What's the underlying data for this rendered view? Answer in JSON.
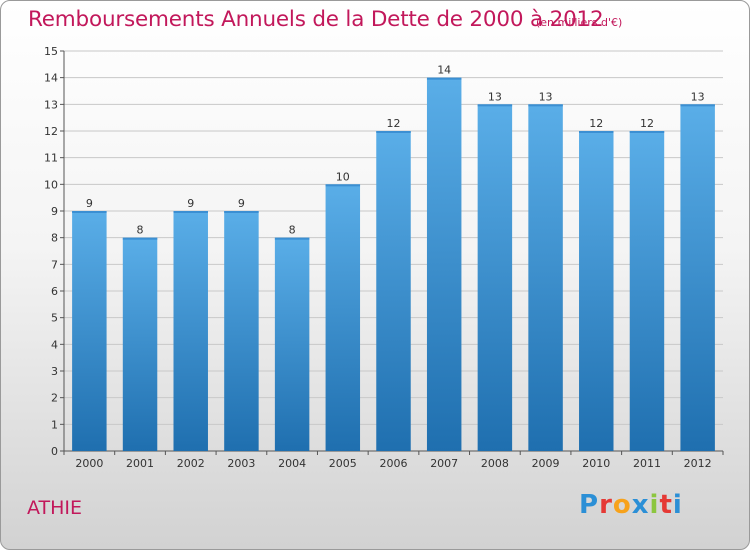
{
  "header": {
    "title": "Remboursements Annuels de la Dette de 2000 à 2012",
    "subtitle": "(en milliers d'€)"
  },
  "footer": {
    "place": "ATHIE",
    "brand": [
      "P",
      "r",
      "o",
      "x",
      "i",
      "t",
      "i"
    ],
    "brand_colors": [
      "#2b8fd6",
      "#e53935",
      "#f7a21b",
      "#2b8fd6",
      "#8cc63f",
      "#e53935",
      "#2b8fd6"
    ]
  },
  "colors": {
    "bar_light": "#5aaee8",
    "bar_dark": "#1f6faf",
    "grid": "#c8c8c8",
    "axis": "#555555",
    "text": "#333333"
  },
  "chart_data": {
    "type": "bar",
    "title": "Remboursements Annuels de la Dette de 2000 à 2012",
    "subtitle": "(en milliers d'€)",
    "categories": [
      "2000",
      "2001",
      "2002",
      "2003",
      "2004",
      "2005",
      "2006",
      "2007",
      "2008",
      "2009",
      "2010",
      "2011",
      "2012"
    ],
    "values": [
      9,
      8,
      9,
      9,
      8,
      10,
      12,
      14,
      13,
      13,
      12,
      12,
      13
    ],
    "ylim": [
      0,
      15
    ],
    "yticks": [
      0,
      1,
      2,
      3,
      4,
      5,
      6,
      7,
      8,
      9,
      10,
      11,
      12,
      13,
      14,
      15
    ],
    "grid": true,
    "data_labels": true
  }
}
